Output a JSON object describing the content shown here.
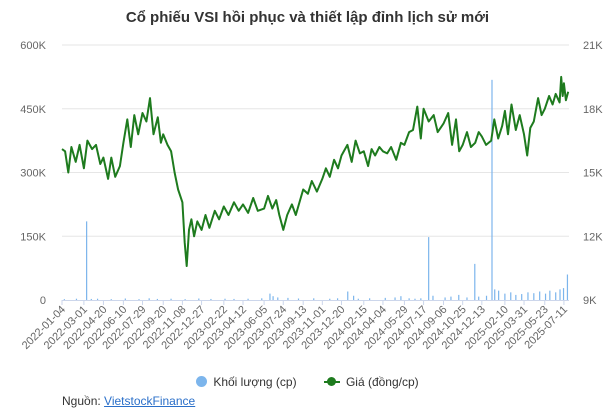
{
  "chart_data": {
    "type": "line",
    "title": "Cổ phiếu VSI hồi phục và thiết lập đỉnh lịch sử mới",
    "x_tick_labels": [
      "2022-01-04",
      "2022-03-01",
      "2022-04-20",
      "2022-06-10",
      "2022-07-29",
      "2022-09-20",
      "2022-11-08",
      "2022-12-27",
      "2023-02-22",
      "2023-04-12",
      "2023-06-05",
      "2023-07-24",
      "2023-09-13",
      "2023-11-01",
      "2023-12-20",
      "2024-02-15",
      "2024-04-04",
      "2024-05-29",
      "2024-07-17",
      "2024-09-06",
      "2024-10-25",
      "2024-12-13",
      "2025-02-10",
      "2025-03-31",
      "2025-05-23",
      "2025-07-11"
    ],
    "y_left": {
      "ylim": [
        0,
        600000
      ],
      "ticks": [
        "0",
        "150K",
        "300K",
        "450K",
        "600K"
      ]
    },
    "y_right": {
      "ylim": [
        9000,
        21000
      ],
      "ticks": [
        "9K",
        "12K",
        "15K",
        "18K",
        "21K"
      ]
    },
    "grid": true,
    "legend_position": "bottom",
    "series": [
      {
        "name": "Khối lượng (cp)",
        "type": "bar",
        "axis": "left",
        "color": "#7cb5ec",
        "points": [
          [
            "2022-01-10",
            2000
          ],
          [
            "2022-02-10",
            3000
          ],
          [
            "2022-03-08",
            185000
          ],
          [
            "2022-03-20",
            2500
          ],
          [
            "2022-04-05",
            3000
          ],
          [
            "2022-05-10",
            2000
          ],
          [
            "2022-06-15",
            3500
          ],
          [
            "2022-07-20",
            2000
          ],
          [
            "2022-08-15",
            4000
          ],
          [
            "2022-09-05",
            2500
          ],
          [
            "2022-10-10",
            3000
          ],
          [
            "2022-11-15",
            2000
          ],
          [
            "2022-12-20",
            3500
          ],
          [
            "2023-01-20",
            2500
          ],
          [
            "2023-02-25",
            3000
          ],
          [
            "2023-03-20",
            2500
          ],
          [
            "2023-04-25",
            3000
          ],
          [
            "2023-05-30",
            4000
          ],
          [
            "2023-06-20",
            15000
          ],
          [
            "2023-06-28",
            9000
          ],
          [
            "2023-07-10",
            6000
          ],
          [
            "2023-08-05",
            5000
          ],
          [
            "2023-09-01",
            3500
          ],
          [
            "2023-10-10",
            4000
          ],
          [
            "2023-11-20",
            3000
          ],
          [
            "2023-12-10",
            4000
          ],
          [
            "2024-01-05",
            20000
          ],
          [
            "2024-01-20",
            10000
          ],
          [
            "2024-02-01",
            3000
          ],
          [
            "2024-03-01",
            4000
          ],
          [
            "2024-04-10",
            5000
          ],
          [
            "2024-05-05",
            6000
          ],
          [
            "2024-05-20",
            9000
          ],
          [
            "2024-06-10",
            4000
          ],
          [
            "2024-06-25",
            3000
          ],
          [
            "2024-07-10",
            4000
          ],
          [
            "2024-07-30",
            148000
          ],
          [
            "2024-08-10",
            10000
          ],
          [
            "2024-09-10",
            6000
          ],
          [
            "2024-09-25",
            8000
          ],
          [
            "2024-10-15",
            12000
          ],
          [
            "2024-11-05",
            6000
          ],
          [
            "2024-11-25",
            85000
          ],
          [
            "2024-12-05",
            8000
          ],
          [
            "2024-12-25",
            10000
          ],
          [
            "2025-01-08",
            518000
          ],
          [
            "2025-01-15",
            25000
          ],
          [
            "2025-01-25",
            22000
          ],
          [
            "2025-02-10",
            15000
          ],
          [
            "2025-02-25",
            18000
          ],
          [
            "2025-03-10",
            12000
          ],
          [
            "2025-03-25",
            14000
          ],
          [
            "2025-04-10",
            18000
          ],
          [
            "2025-04-25",
            16000
          ],
          [
            "2025-05-10",
            20000
          ],
          [
            "2025-05-25",
            15000
          ],
          [
            "2025-06-05",
            22000
          ],
          [
            "2025-06-20",
            18000
          ],
          [
            "2025-07-01",
            25000
          ],
          [
            "2025-07-10",
            28000
          ],
          [
            "2025-07-20",
            60000
          ]
        ]
      },
      {
        "name": "Giá (đồng/cp)",
        "type": "line",
        "axis": "right",
        "color": "#1e7b1e",
        "points": [
          [
            "2022-01-04",
            16100
          ],
          [
            "2022-01-12",
            16000
          ],
          [
            "2022-01-20",
            15000
          ],
          [
            "2022-01-28",
            16200
          ],
          [
            "2022-02-08",
            15500
          ],
          [
            "2022-02-18",
            16300
          ],
          [
            "2022-03-01",
            15200
          ],
          [
            "2022-03-10",
            16500
          ],
          [
            "2022-03-22",
            16100
          ],
          [
            "2022-04-01",
            16300
          ],
          [
            "2022-04-12",
            15400
          ],
          [
            "2022-04-20",
            15700
          ],
          [
            "2022-05-02",
            14700
          ],
          [
            "2022-05-10",
            15700
          ],
          [
            "2022-05-20",
            14800
          ],
          [
            "2022-06-01",
            15300
          ],
          [
            "2022-06-10",
            16400
          ],
          [
            "2022-06-20",
            17500
          ],
          [
            "2022-06-29",
            16200
          ],
          [
            "2022-07-08",
            17700
          ],
          [
            "2022-07-18",
            16800
          ],
          [
            "2022-07-29",
            17800
          ],
          [
            "2022-08-08",
            17400
          ],
          [
            "2022-08-17",
            18500
          ],
          [
            "2022-08-26",
            16800
          ],
          [
            "2022-09-06",
            17600
          ],
          [
            "2022-09-14",
            16400
          ],
          [
            "2022-09-20",
            16800
          ],
          [
            "2022-10-01",
            16300
          ],
          [
            "2022-10-10",
            16000
          ],
          [
            "2022-10-19",
            15000
          ],
          [
            "2022-10-28",
            14200
          ],
          [
            "2022-11-08",
            13600
          ],
          [
            "2022-11-14",
            11700
          ],
          [
            "2022-11-19",
            10600
          ],
          [
            "2022-11-25",
            12300
          ],
          [
            "2022-12-01",
            12800
          ],
          [
            "2022-12-08",
            12000
          ],
          [
            "2022-12-16",
            12700
          ],
          [
            "2022-12-27",
            12300
          ],
          [
            "2023-01-06",
            13000
          ],
          [
            "2023-01-16",
            12400
          ],
          [
            "2023-01-30",
            13200
          ],
          [
            "2023-02-10",
            12800
          ],
          [
            "2023-02-22",
            13400
          ],
          [
            "2023-03-06",
            13000
          ],
          [
            "2023-03-20",
            13600
          ],
          [
            "2023-04-01",
            13200
          ],
          [
            "2023-04-12",
            13500
          ],
          [
            "2023-04-25",
            13100
          ],
          [
            "2023-05-08",
            13800
          ],
          [
            "2023-05-20",
            13200
          ],
          [
            "2023-06-05",
            13300
          ],
          [
            "2023-06-15",
            13900
          ],
          [
            "2023-06-26",
            13300
          ],
          [
            "2023-07-06",
            13700
          ],
          [
            "2023-07-14",
            13000
          ],
          [
            "2023-07-24",
            12300
          ],
          [
            "2023-08-03",
            13000
          ],
          [
            "2023-08-15",
            13500
          ],
          [
            "2023-08-25",
            13000
          ],
          [
            "2023-09-05",
            13700
          ],
          [
            "2023-09-13",
            14200
          ],
          [
            "2023-09-25",
            14000
          ],
          [
            "2023-10-05",
            14600
          ],
          [
            "2023-10-18",
            14100
          ],
          [
            "2023-11-01",
            14700
          ],
          [
            "2023-11-10",
            15200
          ],
          [
            "2023-11-20",
            14800
          ],
          [
            "2023-12-01",
            15600
          ],
          [
            "2023-12-11",
            15200
          ],
          [
            "2023-12-20",
            15800
          ],
          [
            "2024-01-04",
            16300
          ],
          [
            "2024-01-15",
            15500
          ],
          [
            "2024-01-25",
            16500
          ],
          [
            "2024-02-05",
            15900
          ],
          [
            "2024-02-15",
            16000
          ],
          [
            "2024-02-26",
            15300
          ],
          [
            "2024-03-06",
            16100
          ],
          [
            "2024-03-15",
            15800
          ],
          [
            "2024-03-26",
            16200
          ],
          [
            "2024-04-04",
            16000
          ],
          [
            "2024-04-15",
            15900
          ],
          [
            "2024-04-25",
            16200
          ],
          [
            "2024-05-08",
            15600
          ],
          [
            "2024-05-20",
            16400
          ],
          [
            "2024-05-29",
            16300
          ],
          [
            "2024-06-10",
            16900
          ],
          [
            "2024-06-20",
            17000
          ],
          [
            "2024-07-01",
            18100
          ],
          [
            "2024-07-10",
            16600
          ],
          [
            "2024-07-17",
            18000
          ],
          [
            "2024-07-30",
            17400
          ],
          [
            "2024-08-12",
            17700
          ],
          [
            "2024-08-22",
            16900
          ],
          [
            "2024-09-06",
            17300
          ],
          [
            "2024-09-18",
            17800
          ],
          [
            "2024-09-28",
            16300
          ],
          [
            "2024-10-08",
            17500
          ],
          [
            "2024-10-16",
            16000
          ],
          [
            "2024-10-25",
            16300
          ],
          [
            "2024-11-05",
            16900
          ],
          [
            "2024-11-15",
            16200
          ],
          [
            "2024-11-26",
            16400
          ],
          [
            "2024-12-05",
            16900
          ],
          [
            "2024-12-13",
            16700
          ],
          [
            "2024-12-24",
            16300
          ],
          [
            "2025-01-06",
            16500
          ],
          [
            "2025-01-14",
            17500
          ],
          [
            "2025-01-24",
            16600
          ],
          [
            "2025-02-03",
            17200
          ],
          [
            "2025-02-10",
            17900
          ],
          [
            "2025-02-18",
            16800
          ],
          [
            "2025-02-27",
            18200
          ],
          [
            "2025-03-10",
            17000
          ],
          [
            "2025-03-20",
            17700
          ],
          [
            "2025-03-31",
            16800
          ],
          [
            "2025-04-08",
            15800
          ],
          [
            "2025-04-16",
            17100
          ],
          [
            "2025-04-25",
            17400
          ],
          [
            "2025-05-06",
            18500
          ],
          [
            "2025-05-15",
            17700
          ],
          [
            "2025-05-23",
            18000
          ],
          [
            "2025-06-03",
            18600
          ],
          [
            "2025-06-12",
            18200
          ],
          [
            "2025-06-20",
            18700
          ],
          [
            "2025-06-30",
            18300
          ],
          [
            "2025-07-04",
            19500
          ],
          [
            "2025-07-08",
            18600
          ],
          [
            "2025-07-11",
            19200
          ],
          [
            "2025-07-16",
            18400
          ],
          [
            "2025-07-22",
            18800
          ]
        ]
      }
    ]
  },
  "footer": {
    "source_label": "Nguồn:",
    "source_link": "VietstockFinance"
  }
}
